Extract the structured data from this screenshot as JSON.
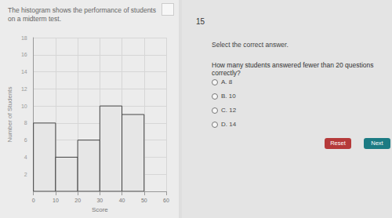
{
  "chart_data": {
    "type": "histogram",
    "title": "The histogram shows the performance of students on a midterm test.",
    "x_label": "Score",
    "y_label": "Number of Students",
    "bins": [
      0,
      10,
      20,
      30,
      40,
      50
    ],
    "values": [
      8,
      4,
      6,
      10,
      9
    ],
    "color": "#e6e6e6",
    "xlim": [
      0,
      60
    ],
    "xticks": [
      0,
      10,
      20,
      30,
      40,
      50,
      60
    ],
    "ylim": [
      0,
      18
    ],
    "yticks": [
      2,
      4,
      6,
      8,
      10,
      12,
      14,
      16,
      18
    ],
    "grid": true
  },
  "quiz": {
    "number": "15",
    "instruction": "Select the correct answer.",
    "question": "How many students answered fewer than 20 questions correctly?",
    "options": [
      {
        "letter": "A.",
        "text": "8"
      },
      {
        "letter": "B.",
        "text": "10"
      },
      {
        "letter": "C.",
        "text": "12"
      },
      {
        "letter": "D.",
        "text": "14"
      }
    ],
    "buttons": [
      "Reset",
      "Next"
    ]
  }
}
